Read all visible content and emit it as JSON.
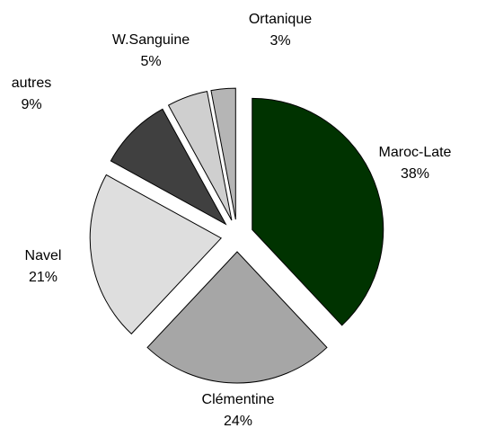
{
  "chart_data": {
    "type": "pie",
    "categories": [
      "Maroc-Late",
      "Clémentine",
      "Navel",
      "autres",
      "W.Sanguine",
      "Ortanique"
    ],
    "values": [
      38,
      24,
      21,
      9,
      5,
      3
    ],
    "value_labels": [
      "38%",
      "24%",
      "21%",
      "9%",
      "5%",
      "3%"
    ],
    "colors": [
      "#003300",
      "#a6a6a6",
      "#dedede",
      "#404040",
      "#cfcfcf",
      "#b5b5b5"
    ]
  }
}
